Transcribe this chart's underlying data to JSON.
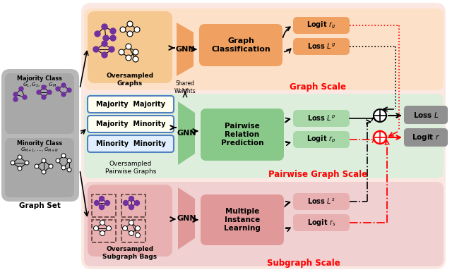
{
  "fig_width": 6.4,
  "fig_height": 3.86,
  "dpi": 100,
  "outer_bg": "#fce8e2",
  "graph_scale_bg": "#fce0c8",
  "pairwise_scale_bg": "#ddeedd",
  "subgraph_scale_bg": "#f0d0d0",
  "graph_set_bg": "#b8b8b8",
  "graph_set_inner_bg": "#a0a0a0",
  "orange_node": "#8040a0",
  "oversampled_graphs_bg": "#f5c890",
  "orange_box": "#f0a060",
  "green_box": "#88c888",
  "pink_box": "#e09898",
  "gray_box": "#909090",
  "light_green_box": "#a8d8a8",
  "light_pink_box": "#e8b0b0",
  "majority_class_color": "#7030a0",
  "red_color": "#ff0000",
  "scale_label_graph": "Graph Scale",
  "scale_label_pairwise": "Pairwise Graph Scale",
  "scale_label_subgraph": "Subgraph Scale",
  "text_graph_classification": "Graph\nClassification",
  "text_pairwise_relation": "Pairwise\nRelation\nPrediction",
  "text_multiple_instance": "Multiple\nInstance\nLearning",
  "text_gnn": "GNN",
  "text_shared_weights": "Shared\nWeights",
  "text_oversampled_graphs": "Oversampled\nGraphs",
  "text_oversampled_pairwise": "Oversampled\nPairwise Graphs",
  "text_oversampled_subgraph": "Oversampled\nSubgraph Bags",
  "text_majority_class": "Majority Class",
  "text_majority_label": "$G_1, G_2, \\ldots, G_M$",
  "text_minority_class": "Minority Class",
  "text_minority_label": "$G_{M+1}, \\ldots, G_{M+N}$",
  "text_graph_set": "Graph Set",
  "text_majority_majority": "Majority  Majority",
  "text_majority_minority": "Majority  Minority",
  "text_minority_minority": "Minority  Minority",
  "text_logit_rg": "Logit $r_g$",
  "text_loss_Lg": "Loss $L^g$",
  "text_loss_Lp": "Loss $L^p$",
  "text_logit_rp": "Logit $r_p$",
  "text_loss_Ls": "Loss $L^s$",
  "text_logit_rs": "Logit $r_s$",
  "text_loss_L": "Loss $L$",
  "text_logit_r": "Logit $r$"
}
